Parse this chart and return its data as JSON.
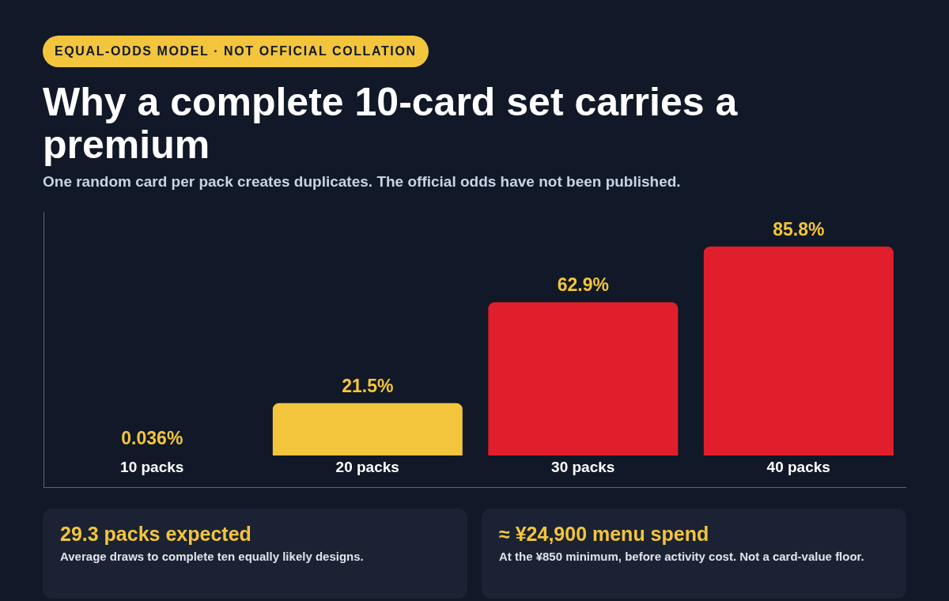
{
  "chart_data": {
    "type": "bar",
    "title": "Why a complete 10-card set carries a premium",
    "subtitle": "One random card per pack creates duplicates. The official odds have not been published.",
    "categories": [
      "10 packs",
      "20 packs",
      "30 packs",
      "40 packs"
    ],
    "values": [
      0.036,
      21.5,
      62.9,
      85.8
    ],
    "colors": [
      "#f2c53d",
      "#f2c53d",
      "#e11f2c",
      "#e11f2c"
    ],
    "value_labels": [
      "0.036%",
      "21.5%",
      "62.9%",
      "85.8%"
    ],
    "annotations": [
      "EQUAL-ODDS MODEL · NOT OFFICIAL COLLATION",
      "29.3 packs expected",
      "Average draws to complete ten equally likely designs.",
      "≈ ¥24,900 menu spend",
      "At the ¥850 minimum, before activity cost. Not a card-value floor."
    ]
  }
}
